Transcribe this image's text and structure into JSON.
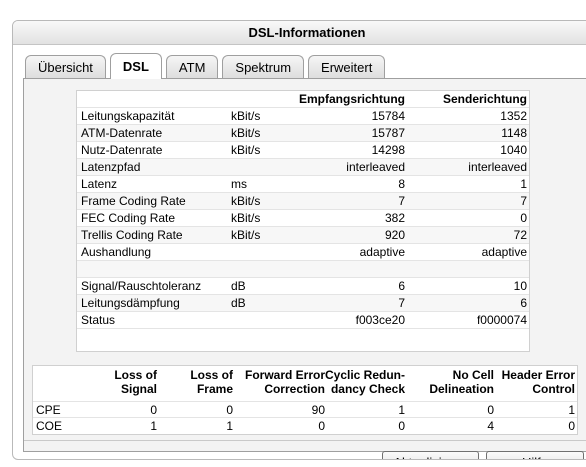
{
  "window": {
    "title": "DSL-Informationen"
  },
  "tabs": [
    {
      "label": "Übersicht",
      "active": false
    },
    {
      "label": "DSL",
      "active": true
    },
    {
      "label": "ATM",
      "active": false
    },
    {
      "label": "Spektrum",
      "active": false
    },
    {
      "label": "Erweitert",
      "active": false
    }
  ],
  "dsl": {
    "headers": {
      "down": "Empfangsrichtung",
      "up": "Senderichtung"
    },
    "rows": [
      {
        "label": "Leitungskapazität",
        "unit": "kBit/s",
        "down": "15784",
        "up": "1352"
      },
      {
        "label": "ATM-Datenrate",
        "unit": "kBit/s",
        "down": "15787",
        "up": "1148"
      },
      {
        "label": "Nutz-Datenrate",
        "unit": "kBit/s",
        "down": "14298",
        "up": "1040"
      },
      {
        "label": "Latenzpfad",
        "unit": "",
        "down": "interleaved",
        "up": "interleaved"
      },
      {
        "label": "Latenz",
        "unit": "ms",
        "down": "8",
        "up": "1"
      },
      {
        "label": "Frame Coding Rate",
        "unit": "kBit/s",
        "down": "7",
        "up": "7"
      },
      {
        "label": "FEC Coding Rate",
        "unit": "kBit/s",
        "down": "382",
        "up": "0"
      },
      {
        "label": "Trellis Coding Rate",
        "unit": "kBit/s",
        "down": "920",
        "up": "72"
      },
      {
        "label": "Aushandlung",
        "unit": "",
        "down": "adaptive",
        "up": "adaptive"
      },
      {
        "label": "",
        "unit": "",
        "down": "",
        "up": ""
      },
      {
        "label": "Signal/Rauschtoleranz",
        "unit": "dB",
        "down": "6",
        "up": "10"
      },
      {
        "label": "Leitungsdämpfung",
        "unit": "dB",
        "down": "7",
        "up": "6"
      },
      {
        "label": "Status",
        "unit": "",
        "down": "f003ce20",
        "up": "f0000074"
      }
    ]
  },
  "errors": {
    "headers": [
      {
        "l1": "Loss of",
        "l2": "Signal"
      },
      {
        "l1": "Loss of",
        "l2": "Frame"
      },
      {
        "l1": "Forward Error",
        "l2": "Correction"
      },
      {
        "l1": "Cyclic Redun-",
        "l2": "dancy Check"
      },
      {
        "l1": "No Cell",
        "l2": "Delineation"
      },
      {
        "l1": "Header Error",
        "l2": "Control"
      }
    ],
    "rows": [
      {
        "label": "CPE",
        "values": [
          "0",
          "0",
          "90",
          "1",
          "0",
          "1"
        ]
      },
      {
        "label": "COE",
        "values": [
          "1",
          "1",
          "0",
          "0",
          "4",
          "0"
        ]
      }
    ]
  },
  "buttons": {
    "refresh": "Aktualisieren",
    "help": "Hilfe"
  }
}
